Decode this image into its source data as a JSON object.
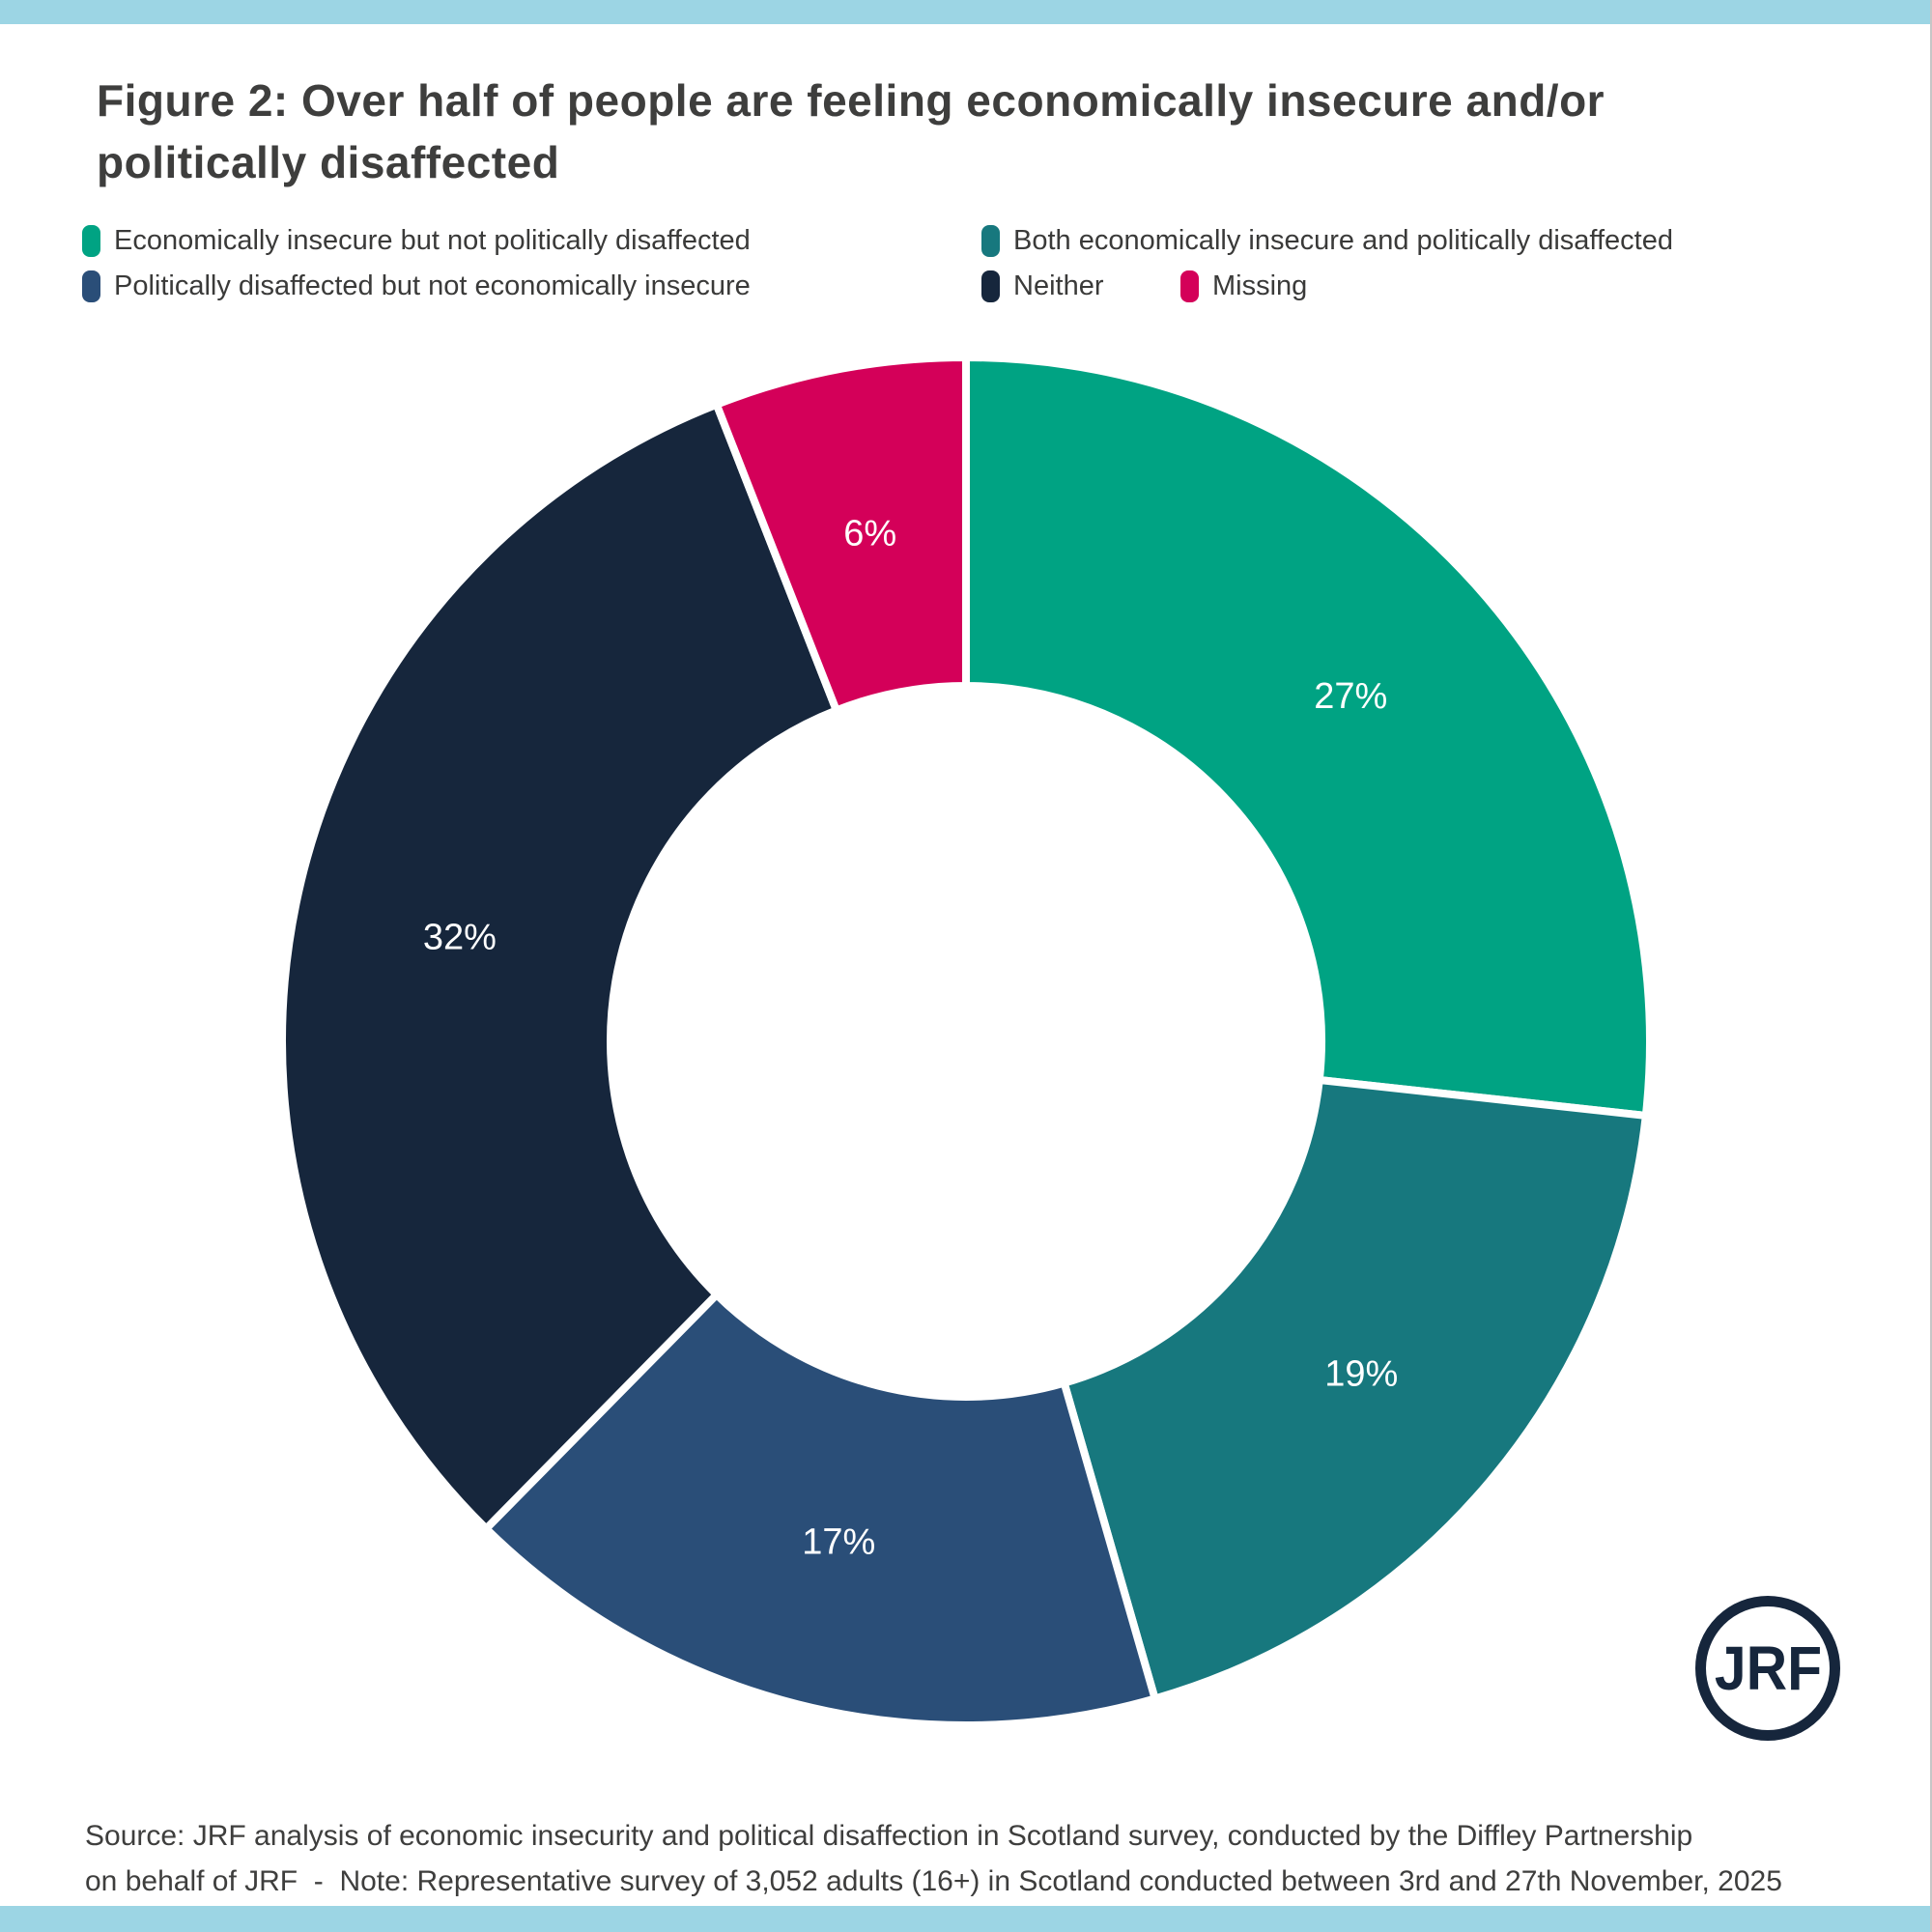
{
  "frame": {
    "top_bar_color": "#9cd5e4",
    "bottom_bar_color": "#9cd5e4"
  },
  "title": {
    "full": "Figure 2: Over half of people are feeling economically insecure and/or politically disaffected",
    "lines": [
      "Figure 2: Over half of people are feeling economically insecure and/or",
      "politically disaffected"
    ]
  },
  "legend": [
    {
      "label": "Economically insecure but not politically disaffected",
      "color": "#00a383"
    },
    {
      "label": "Both economically insecure and politically disaffected",
      "color": "#17787e"
    },
    {
      "label": "Politically disaffected but not economically insecure",
      "color": "#2a4e78"
    },
    {
      "label": "Neither",
      "color": "#16263c"
    },
    {
      "label": "Missing",
      "color": "#d40059"
    }
  ],
  "chart_data": {
    "type": "pie",
    "subtype": "donut",
    "title": "Figure 2: Over half of people are feeling economically insecure and/or politically disaffected",
    "categories": [
      "Economically insecure but not politically disaffected",
      "Both economically insecure and politically disaffected",
      "Politically disaffected but not economically insecure",
      "Neither",
      "Missing"
    ],
    "values": [
      27,
      19,
      17,
      32,
      6
    ],
    "labels": [
      "27%",
      "19%",
      "17%",
      "32%",
      "6%"
    ],
    "colors": [
      "#00a383",
      "#17787e",
      "#2a4e78",
      "#16263c",
      "#d40059"
    ],
    "start_angle_deg": 0,
    "direction": "clockwise",
    "legend_position": "top",
    "label_color": "#ffffff"
  },
  "logo": {
    "text": "JRF",
    "color": "#16263c"
  },
  "source": {
    "lines": [
      "Source: JRF analysis of economic insecurity and political disaffection in Scotland survey, conducted by the Diffley Partnership",
      "on behalf of JRF  -  Note: Representative survey of 3,052 adults (16+) in Scotland conducted between 3rd and 27th November, 2025"
    ]
  }
}
